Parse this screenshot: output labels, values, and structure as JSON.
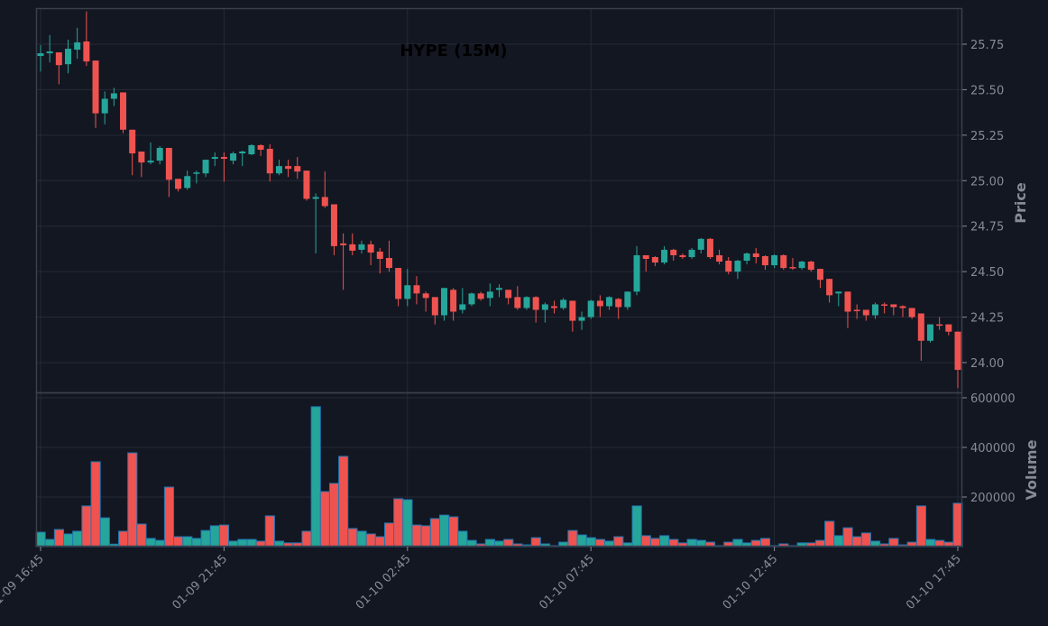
{
  "chart_data": {
    "type": "candlestick",
    "title": "HYPE (15M)",
    "ylabel": "Price",
    "volume_label": "Volume",
    "interval": "15m",
    "colors": {
      "up": "#26a69a",
      "down": "#ef5350",
      "volume_edge": "#1f77b4",
      "background": "#131722",
      "grid": "#262a35"
    },
    "price_ticks": [
      "24.00",
      "24.25",
      "24.50",
      "24.75",
      "25.00",
      "25.25",
      "25.50",
      "25.75"
    ],
    "price_tick_values": [
      24.0,
      24.25,
      24.5,
      24.75,
      25.0,
      25.25,
      25.5,
      25.75
    ],
    "volume_ticks": [
      "200000",
      "400000",
      "600000"
    ],
    "volume_tick_values": [
      200000,
      400000,
      600000
    ],
    "x_ticks": [
      "01-09 16:45",
      "01-09 21:45",
      "01-10 02:45",
      "01-10 07:45",
      "01-10 12:45",
      "01-10 17:45"
    ],
    "x_tick_index": [
      0,
      20,
      40,
      60,
      80,
      100
    ],
    "ylim": [
      23.84,
      25.95
    ],
    "volume_ylim": [
      0,
      605000
    ],
    "ohlc": [
      [
        25.685,
        25.745,
        25.6,
        25.7
      ],
      [
        25.7,
        25.8,
        25.65,
        25.71
      ],
      [
        25.705,
        25.705,
        25.53,
        25.635
      ],
      [
        25.64,
        25.775,
        25.59,
        25.725
      ],
      [
        25.72,
        25.84,
        25.67,
        25.76
      ],
      [
        25.765,
        25.93,
        25.63,
        25.655
      ],
      [
        25.66,
        25.66,
        25.29,
        25.37
      ],
      [
        25.37,
        25.49,
        25.31,
        25.45
      ],
      [
        25.45,
        25.51,
        25.41,
        25.48
      ],
      [
        25.485,
        25.485,
        25.26,
        25.28
      ],
      [
        25.28,
        25.28,
        25.03,
        25.15
      ],
      [
        25.16,
        25.16,
        25.02,
        25.1
      ],
      [
        25.1,
        25.21,
        25.09,
        25.11
      ],
      [
        25.11,
        25.19,
        25.09,
        25.18
      ],
      [
        25.18,
        25.18,
        24.91,
        25.005
      ],
      [
        25.01,
        25.01,
        24.94,
        24.955
      ],
      [
        24.96,
        25.055,
        24.95,
        25.025
      ],
      [
        25.04,
        25.055,
        24.985,
        25.045
      ],
      [
        25.04,
        25.115,
        25.02,
        25.115
      ],
      [
        25.12,
        25.155,
        25.08,
        25.13
      ],
      [
        25.13,
        25.155,
        24.995,
        25.12
      ],
      [
        25.11,
        25.16,
        25.09,
        25.15
      ],
      [
        25.15,
        25.165,
        25.08,
        25.16
      ],
      [
        25.145,
        25.2,
        25.14,
        25.195
      ],
      [
        25.195,
        25.2,
        25.135,
        25.17
      ],
      [
        25.175,
        25.2,
        24.995,
        25.04
      ],
      [
        25.04,
        25.115,
        25.03,
        25.08
      ],
      [
        25.08,
        25.115,
        25.02,
        25.065
      ],
      [
        25.08,
        25.13,
        25.01,
        25.05
      ],
      [
        25.055,
        25.055,
        24.89,
        24.9
      ],
      [
        24.9,
        24.93,
        24.6,
        24.91
      ],
      [
        24.91,
        25.05,
        24.85,
        24.86
      ],
      [
        24.87,
        24.87,
        24.59,
        24.64
      ],
      [
        24.655,
        24.71,
        24.4,
        24.645
      ],
      [
        24.65,
        24.71,
        24.59,
        24.615
      ],
      [
        24.62,
        24.67,
        24.6,
        24.65
      ],
      [
        24.65,
        24.67,
        24.535,
        24.605
      ],
      [
        24.61,
        24.63,
        24.49,
        24.57
      ],
      [
        24.575,
        24.67,
        24.5,
        24.52
      ],
      [
        24.52,
        24.52,
        24.31,
        24.35
      ],
      [
        24.35,
        24.515,
        24.31,
        24.425
      ],
      [
        24.425,
        24.475,
        24.32,
        24.38
      ],
      [
        24.38,
        24.39,
        24.28,
        24.355
      ],
      [
        24.36,
        24.36,
        24.21,
        24.26
      ],
      [
        24.26,
        24.41,
        24.23,
        24.41
      ],
      [
        24.4,
        24.41,
        24.23,
        24.28
      ],
      [
        24.29,
        24.41,
        24.27,
        24.32
      ],
      [
        24.32,
        24.385,
        24.31,
        24.38
      ],
      [
        24.38,
        24.39,
        24.34,
        24.35
      ],
      [
        24.355,
        24.435,
        24.31,
        24.39
      ],
      [
        24.4,
        24.43,
        24.36,
        24.41
      ],
      [
        24.4,
        24.4,
        24.32,
        24.355
      ],
      [
        24.36,
        24.42,
        24.29,
        24.3
      ],
      [
        24.3,
        24.365,
        24.29,
        24.36
      ],
      [
        24.36,
        24.365,
        24.22,
        24.29
      ],
      [
        24.29,
        24.33,
        24.22,
        24.32
      ],
      [
        24.31,
        24.34,
        24.27,
        24.3
      ],
      [
        24.3,
        24.355,
        24.29,
        24.345
      ],
      [
        24.34,
        24.34,
        24.17,
        24.23
      ],
      [
        24.23,
        24.28,
        24.18,
        24.25
      ],
      [
        24.25,
        24.345,
        24.24,
        24.34
      ],
      [
        24.34,
        24.37,
        24.25,
        24.31
      ],
      [
        24.31,
        24.365,
        24.29,
        24.36
      ],
      [
        24.35,
        24.355,
        24.24,
        24.305
      ],
      [
        24.305,
        24.39,
        24.29,
        24.39
      ],
      [
        24.39,
        24.64,
        24.37,
        24.59
      ],
      [
        24.59,
        24.59,
        24.5,
        24.57
      ],
      [
        24.58,
        24.585,
        24.53,
        24.55
      ],
      [
        24.55,
        24.64,
        24.54,
        24.62
      ],
      [
        24.62,
        24.625,
        24.56,
        24.59
      ],
      [
        24.59,
        24.6,
        24.57,
        24.58
      ],
      [
        24.58,
        24.63,
        24.57,
        24.62
      ],
      [
        24.62,
        24.685,
        24.6,
        24.68
      ],
      [
        24.68,
        24.685,
        24.57,
        24.58
      ],
      [
        24.59,
        24.62,
        24.54,
        24.555
      ],
      [
        24.56,
        24.58,
        24.485,
        24.5
      ],
      [
        24.5,
        24.565,
        24.46,
        24.56
      ],
      [
        24.56,
        24.605,
        24.54,
        24.6
      ],
      [
        24.6,
        24.63,
        24.545,
        24.58
      ],
      [
        24.585,
        24.59,
        24.51,
        24.535
      ],
      [
        24.535,
        24.595,
        24.52,
        24.59
      ],
      [
        24.59,
        24.595,
        24.51,
        24.52
      ],
      [
        24.525,
        24.575,
        24.51,
        24.522
      ],
      [
        24.52,
        24.56,
        24.51,
        24.555
      ],
      [
        24.555,
        24.56,
        24.5,
        24.51
      ],
      [
        24.515,
        24.515,
        24.41,
        24.455
      ],
      [
        24.46,
        24.46,
        24.33,
        24.37
      ],
      [
        24.38,
        24.39,
        24.31,
        24.39
      ],
      [
        24.39,
        24.39,
        24.19,
        24.28
      ],
      [
        24.29,
        24.32,
        24.24,
        24.285
      ],
      [
        24.29,
        24.29,
        24.23,
        24.26
      ],
      [
        24.26,
        24.33,
        24.24,
        24.32
      ],
      [
        24.32,
        24.33,
        24.27,
        24.318
      ],
      [
        24.32,
        24.32,
        24.26,
        24.305
      ],
      [
        24.31,
        24.315,
        24.25,
        24.3
      ],
      [
        24.3,
        24.3,
        24.24,
        24.25
      ],
      [
        24.27,
        24.27,
        24.01,
        24.12
      ],
      [
        24.12,
        24.21,
        24.11,
        24.21
      ],
      [
        24.21,
        24.25,
        24.18,
        24.205
      ],
      [
        24.21,
        24.21,
        24.15,
        24.17
      ],
      [
        24.17,
        24.17,
        23.86,
        23.96
      ]
    ],
    "volume": [
      58000,
      29000,
      69000,
      51000,
      62000,
      164000,
      342000,
      116000,
      10000,
      62000,
      378000,
      91000,
      33000,
      25000,
      240000,
      40000,
      40000,
      33000,
      65000,
      84000,
      87000,
      22000,
      29000,
      29000,
      22000,
      124000,
      22000,
      15000,
      15000,
      62000,
      564000,
      222000,
      255000,
      364000,
      73000,
      62000,
      51000,
      40000,
      95000,
      193000,
      189000,
      87000,
      84000,
      113000,
      127000,
      120000,
      62000,
      25000,
      11000,
      29000,
      22000,
      29000,
      11000,
      7000,
      36000,
      11000,
      4000,
      18000,
      65000,
      47000,
      36000,
      29000,
      22000,
      40000,
      15000,
      164000,
      44000,
      33000,
      44000,
      29000,
      15000,
      29000,
      25000,
      18000,
      4000,
      18000,
      29000,
      15000,
      25000,
      33000,
      4000,
      11000,
      4000,
      15000,
      15000,
      25000,
      102000,
      44000,
      76000,
      40000,
      55000,
      22000,
      11000,
      33000,
      7000,
      18000,
      164000,
      29000,
      25000,
      18000,
      175000
    ]
  }
}
